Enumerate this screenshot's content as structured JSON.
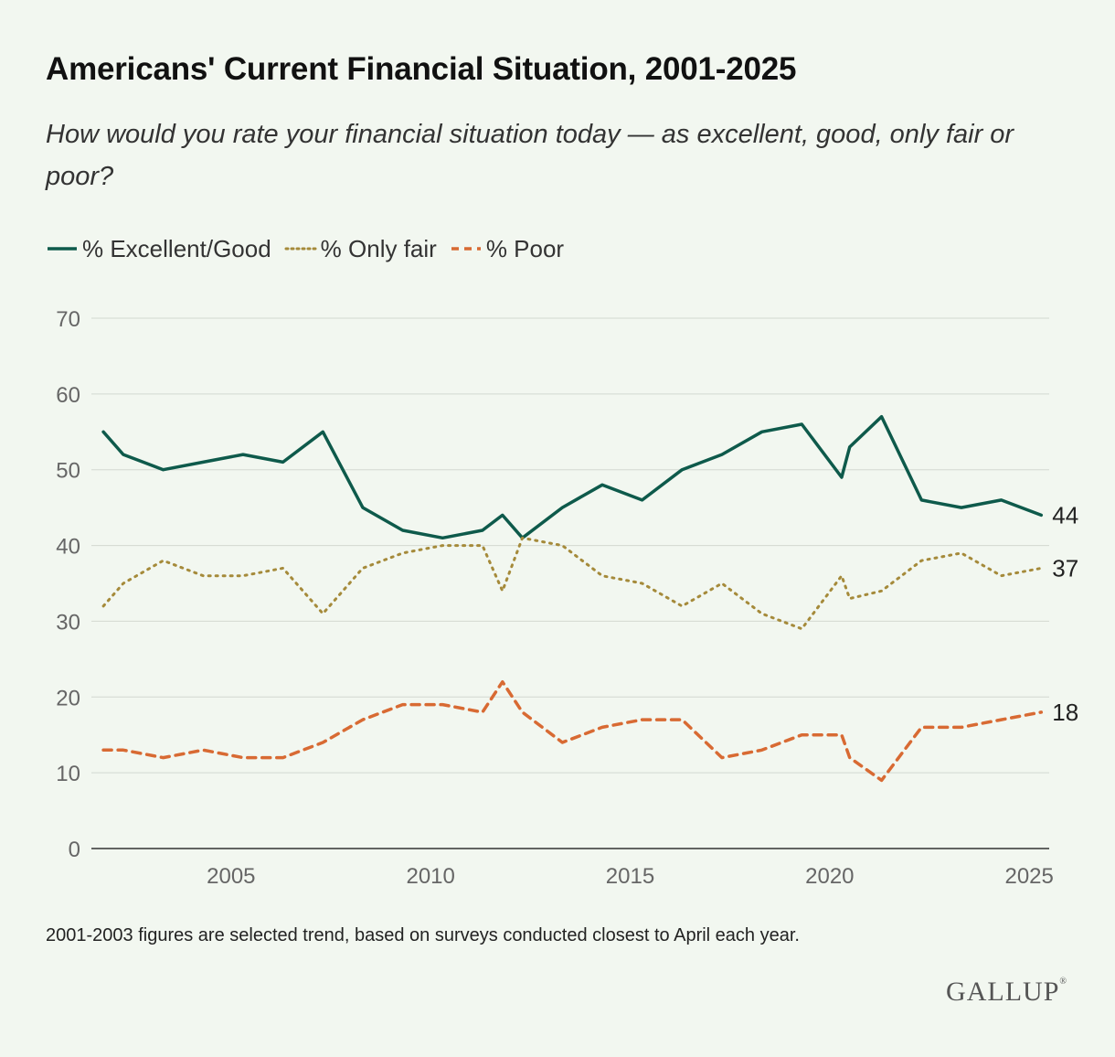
{
  "header": {
    "title": "Americans' Current Financial Situation, 2001-2025",
    "subtitle": "How would you rate your financial situation today — as excellent, good, only fair or poor?"
  },
  "footnote": "2001-2003 figures are selected trend, based on surveys conducted closest to April each year.",
  "brand": "GALLUP",
  "chart_data": {
    "type": "line",
    "title": "Americans' Current Financial Situation, 2001-2025",
    "xlabel": "",
    "ylabel": "",
    "ylim": [
      0,
      70
    ],
    "xlim": [
      2001.5,
      2025.5
    ],
    "yticks": [
      0,
      10,
      20,
      30,
      40,
      50,
      60,
      70
    ],
    "xticks": [
      2005,
      2010,
      2015,
      2020,
      2025
    ],
    "grid": true,
    "legend_position": "top-left",
    "x": [
      2001.8,
      2002.3,
      2003.3,
      2004.3,
      2005.3,
      2006.3,
      2007.3,
      2008.3,
      2009.3,
      2010.3,
      2011.3,
      2011.8,
      2012.3,
      2013.3,
      2014.3,
      2015.3,
      2016.3,
      2017.3,
      2018.3,
      2019.3,
      2020.3,
      2020.5,
      2021.3,
      2022.3,
      2023.3,
      2024.3,
      2025.3
    ],
    "series": [
      {
        "name": "% Excellent/Good",
        "color": "#0e5a4b",
        "dash": "solid",
        "end_label": "44",
        "values": [
          55,
          52,
          50,
          51,
          52,
          51,
          55,
          45,
          42,
          41,
          42,
          44,
          41,
          45,
          48,
          46,
          50,
          52,
          55,
          56,
          49,
          53,
          57,
          46,
          45,
          46,
          44
        ]
      },
      {
        "name": "% Only fair",
        "color": "#a58a3a",
        "dash": "dotted",
        "end_label": "37",
        "values": [
          32,
          35,
          38,
          36,
          36,
          37,
          31,
          37,
          39,
          40,
          40,
          34,
          41,
          40,
          36,
          35,
          32,
          35,
          31,
          29,
          36,
          33,
          34,
          38,
          39,
          36,
          37
        ]
      },
      {
        "name": "% Poor",
        "color": "#d86a33",
        "dash": "dashed",
        "end_label": "18",
        "values": [
          13,
          13,
          12,
          13,
          12,
          12,
          14,
          17,
          19,
          19,
          18,
          22,
          18,
          14,
          16,
          17,
          17,
          12,
          13,
          15,
          15,
          12,
          9,
          16,
          16,
          17,
          18
        ]
      }
    ]
  }
}
